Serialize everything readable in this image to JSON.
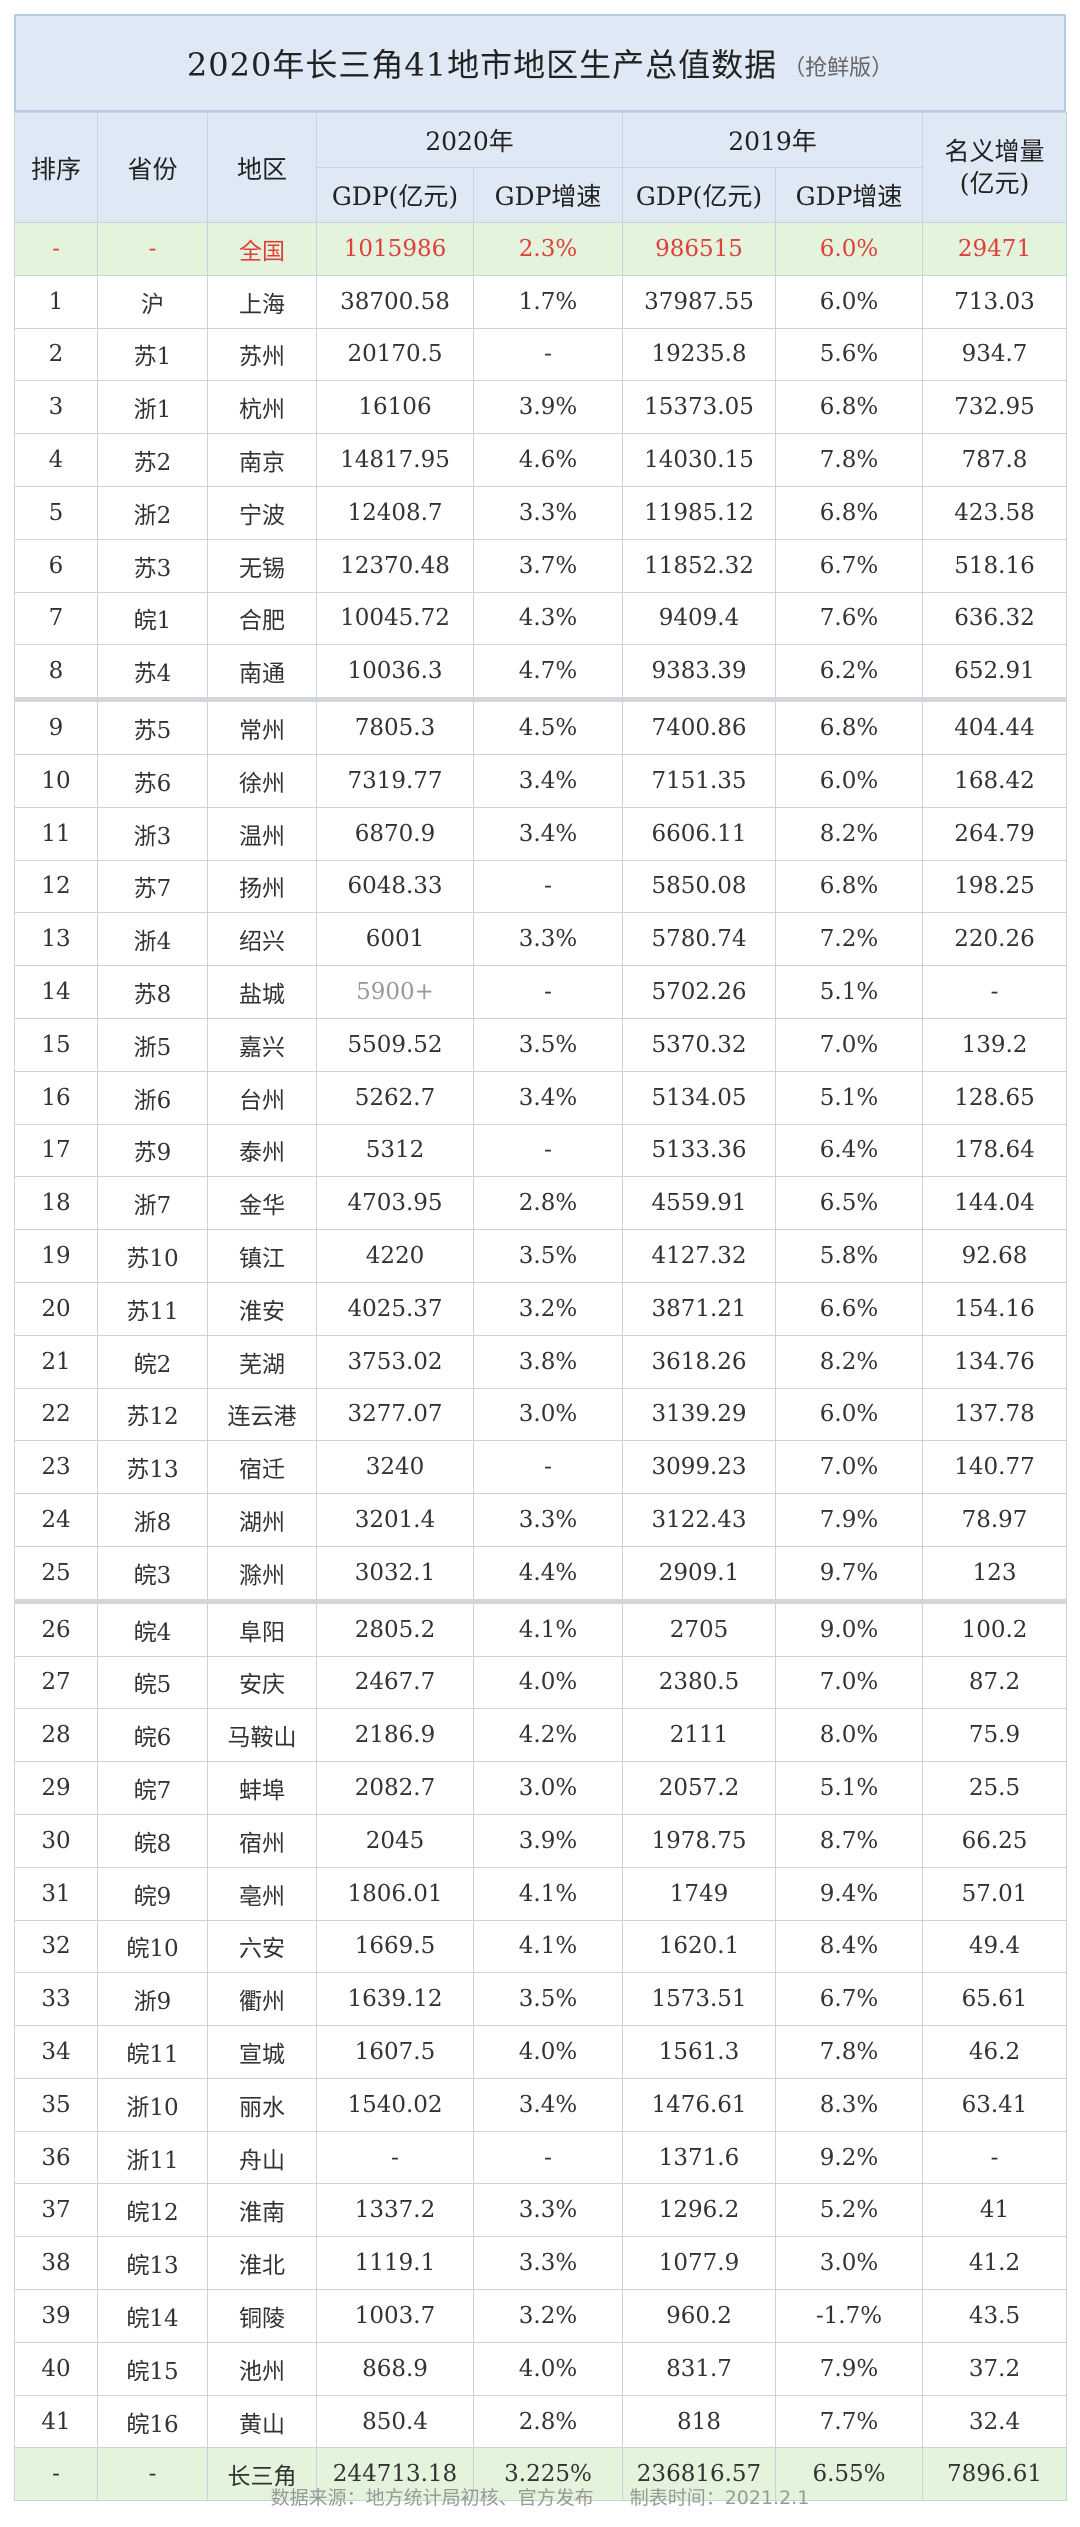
{
  "title": {
    "main": "2020年长三角41地市地区生产总值数据",
    "sub": "（抢鲜版）"
  },
  "headers": {
    "rank": "排序",
    "province": "省份",
    "region": "地区",
    "year2020": "2020年",
    "year2019": "2019年",
    "gdp": "GDP(亿元)",
    "growth": "GDP增速",
    "increase_line1": "名义增量",
    "increase_line2": "(亿元)"
  },
  "national": {
    "rank": "-",
    "prov": "-",
    "city": "全国",
    "gdp20": "1015986",
    "g20": "2.3%",
    "gdp19": "986515",
    "g19": "6.0%",
    "inc": "29471"
  },
  "rows": [
    {
      "rank": "1",
      "prov": "沪",
      "city": "上海",
      "gdp20": "38700.58",
      "g20": "1.7%",
      "gdp19": "37987.55",
      "g19": "6.0%",
      "inc": "713.03"
    },
    {
      "rank": "2",
      "prov": "苏1",
      "city": "苏州",
      "gdp20": "20170.5",
      "g20": "-",
      "gdp19": "19235.8",
      "g19": "5.6%",
      "inc": "934.7"
    },
    {
      "rank": "3",
      "prov": "浙1",
      "city": "杭州",
      "gdp20": "16106",
      "g20": "3.9%",
      "gdp19": "15373.05",
      "g19": "6.8%",
      "inc": "732.95"
    },
    {
      "rank": "4",
      "prov": "苏2",
      "city": "南京",
      "gdp20": "14817.95",
      "g20": "4.6%",
      "gdp19": "14030.15",
      "g19": "7.8%",
      "inc": "787.8"
    },
    {
      "rank": "5",
      "prov": "浙2",
      "city": "宁波",
      "gdp20": "12408.7",
      "g20": "3.3%",
      "gdp19": "11985.12",
      "g19": "6.8%",
      "inc": "423.58"
    },
    {
      "rank": "6",
      "prov": "苏3",
      "city": "无锡",
      "gdp20": "12370.48",
      "g20": "3.7%",
      "gdp19": "11852.32",
      "g19": "6.7%",
      "inc": "518.16"
    },
    {
      "rank": "7",
      "prov": "皖1",
      "city": "合肥",
      "gdp20": "10045.72",
      "g20": "4.3%",
      "gdp19": "9409.4",
      "g19": "7.6%",
      "inc": "636.32"
    },
    {
      "rank": "8",
      "prov": "苏4",
      "city": "南通",
      "gdp20": "10036.3",
      "g20": "4.7%",
      "gdp19": "9383.39",
      "g19": "6.2%",
      "inc": "652.91"
    },
    {
      "rank": "9",
      "prov": "苏5",
      "city": "常州",
      "gdp20": "7805.3",
      "g20": "4.5%",
      "gdp19": "7400.86",
      "g19": "6.8%",
      "inc": "404.44"
    },
    {
      "rank": "10",
      "prov": "苏6",
      "city": "徐州",
      "gdp20": "7319.77",
      "g20": "3.4%",
      "gdp19": "7151.35",
      "g19": "6.0%",
      "inc": "168.42"
    },
    {
      "rank": "11",
      "prov": "浙3",
      "city": "温州",
      "gdp20": "6870.9",
      "g20": "3.4%",
      "gdp19": "6606.11",
      "g19": "8.2%",
      "inc": "264.79"
    },
    {
      "rank": "12",
      "prov": "苏7",
      "city": "扬州",
      "gdp20": "6048.33",
      "g20": "-",
      "gdp19": "5850.08",
      "g19": "6.8%",
      "inc": "198.25"
    },
    {
      "rank": "13",
      "prov": "浙4",
      "city": "绍兴",
      "gdp20": "6001",
      "g20": "3.3%",
      "gdp19": "5780.74",
      "g19": "7.2%",
      "inc": "220.26"
    },
    {
      "rank": "14",
      "prov": "苏8",
      "city": "盐城",
      "gdp20": "5900+",
      "g20": "-",
      "gdp19": "5702.26",
      "g19": "5.1%",
      "inc": "-"
    },
    {
      "rank": "15",
      "prov": "浙5",
      "city": "嘉兴",
      "gdp20": "5509.52",
      "g20": "3.5%",
      "gdp19": "5370.32",
      "g19": "7.0%",
      "inc": "139.2"
    },
    {
      "rank": "16",
      "prov": "浙6",
      "city": "台州",
      "gdp20": "5262.7",
      "g20": "3.4%",
      "gdp19": "5134.05",
      "g19": "5.1%",
      "inc": "128.65"
    },
    {
      "rank": "17",
      "prov": "苏9",
      "city": "泰州",
      "gdp20": "5312",
      "g20": "-",
      "gdp19": "5133.36",
      "g19": "6.4%",
      "inc": "178.64"
    },
    {
      "rank": "18",
      "prov": "浙7",
      "city": "金华",
      "gdp20": "4703.95",
      "g20": "2.8%",
      "gdp19": "4559.91",
      "g19": "6.5%",
      "inc": "144.04"
    },
    {
      "rank": "19",
      "prov": "苏10",
      "city": "镇江",
      "gdp20": "4220",
      "g20": "3.5%",
      "gdp19": "4127.32",
      "g19": "5.8%",
      "inc": "92.68"
    },
    {
      "rank": "20",
      "prov": "苏11",
      "city": "淮安",
      "gdp20": "4025.37",
      "g20": "3.2%",
      "gdp19": "3871.21",
      "g19": "6.6%",
      "inc": "154.16"
    },
    {
      "rank": "21",
      "prov": "皖2",
      "city": "芜湖",
      "gdp20": "3753.02",
      "g20": "3.8%",
      "gdp19": "3618.26",
      "g19": "8.2%",
      "inc": "134.76"
    },
    {
      "rank": "22",
      "prov": "苏12",
      "city": "连云港",
      "gdp20": "3277.07",
      "g20": "3.0%",
      "gdp19": "3139.29",
      "g19": "6.0%",
      "inc": "137.78"
    },
    {
      "rank": "23",
      "prov": "苏13",
      "city": "宿迁",
      "gdp20": "3240",
      "g20": "-",
      "gdp19": "3099.23",
      "g19": "7.0%",
      "inc": "140.77"
    },
    {
      "rank": "24",
      "prov": "浙8",
      "city": "湖州",
      "gdp20": "3201.4",
      "g20": "3.3%",
      "gdp19": "3122.43",
      "g19": "7.9%",
      "inc": "78.97"
    },
    {
      "rank": "25",
      "prov": "皖3",
      "city": "滁州",
      "gdp20": "3032.1",
      "g20": "4.4%",
      "gdp19": "2909.1",
      "g19": "9.7%",
      "inc": "123"
    },
    {
      "rank": "26",
      "prov": "皖4",
      "city": "阜阳",
      "gdp20": "2805.2",
      "g20": "4.1%",
      "gdp19": "2705",
      "g19": "9.0%",
      "inc": "100.2"
    },
    {
      "rank": "27",
      "prov": "皖5",
      "city": "安庆",
      "gdp20": "2467.7",
      "g20": "4.0%",
      "gdp19": "2380.5",
      "g19": "7.0%",
      "inc": "87.2"
    },
    {
      "rank": "28",
      "prov": "皖6",
      "city": "马鞍山",
      "gdp20": "2186.9",
      "g20": "4.2%",
      "gdp19": "2111",
      "g19": "8.0%",
      "inc": "75.9"
    },
    {
      "rank": "29",
      "prov": "皖7",
      "city": "蚌埠",
      "gdp20": "2082.7",
      "g20": "3.0%",
      "gdp19": "2057.2",
      "g19": "5.1%",
      "inc": "25.5"
    },
    {
      "rank": "30",
      "prov": "皖8",
      "city": "宿州",
      "gdp20": "2045",
      "g20": "3.9%",
      "gdp19": "1978.75",
      "g19": "8.7%",
      "inc": "66.25"
    },
    {
      "rank": "31",
      "prov": "皖9",
      "city": "亳州",
      "gdp20": "1806.01",
      "g20": "4.1%",
      "gdp19": "1749",
      "g19": "9.4%",
      "inc": "57.01"
    },
    {
      "rank": "32",
      "prov": "皖10",
      "city": "六安",
      "gdp20": "1669.5",
      "g20": "4.1%",
      "gdp19": "1620.1",
      "g19": "8.4%",
      "inc": "49.4"
    },
    {
      "rank": "33",
      "prov": "浙9",
      "city": "衢州",
      "gdp20": "1639.12",
      "g20": "3.5%",
      "gdp19": "1573.51",
      "g19": "6.7%",
      "inc": "65.61"
    },
    {
      "rank": "34",
      "prov": "皖11",
      "city": "宣城",
      "gdp20": "1607.5",
      "g20": "4.0%",
      "gdp19": "1561.3",
      "g19": "7.8%",
      "inc": "46.2"
    },
    {
      "rank": "35",
      "prov": "浙10",
      "city": "丽水",
      "gdp20": "1540.02",
      "g20": "3.4%",
      "gdp19": "1476.61",
      "g19": "8.3%",
      "inc": "63.41"
    },
    {
      "rank": "36",
      "prov": "浙11",
      "city": "舟山",
      "gdp20": "-",
      "g20": "-",
      "gdp19": "1371.6",
      "g19": "9.2%",
      "inc": "-"
    },
    {
      "rank": "37",
      "prov": "皖12",
      "city": "淮南",
      "gdp20": "1337.2",
      "g20": "3.3%",
      "gdp19": "1296.2",
      "g19": "5.2%",
      "inc": "41"
    },
    {
      "rank": "38",
      "prov": "皖13",
      "city": "淮北",
      "gdp20": "1119.1",
      "g20": "3.3%",
      "gdp19": "1077.9",
      "g19": "3.0%",
      "inc": "41.2"
    },
    {
      "rank": "39",
      "prov": "皖14",
      "city": "铜陵",
      "gdp20": "1003.7",
      "g20": "3.2%",
      "gdp19": "960.2",
      "g19": "-1.7%",
      "inc": "43.5"
    },
    {
      "rank": "40",
      "prov": "皖15",
      "city": "池州",
      "gdp20": "868.9",
      "g20": "4.0%",
      "gdp19": "831.7",
      "g19": "7.9%",
      "inc": "37.2"
    },
    {
      "rank": "41",
      "prov": "皖16",
      "city": "黄山",
      "gdp20": "850.4",
      "g20": "2.8%",
      "gdp19": "818",
      "g19": "7.7%",
      "inc": "32.4"
    }
  ],
  "total": {
    "rank": "-",
    "prov": "-",
    "city": "长三角",
    "gdp20": "244713.18",
    "g20": "3.225%",
    "gdp19": "236816.57",
    "g19": "6.55%",
    "inc": "7896.61"
  },
  "footer": {
    "source": "数据来源：地方统计局初核、官方发布",
    "time": "制表时间：2021.2.1"
  },
  "colors": {
    "hu": "#7a4fb0",
    "su": "#4d8dcc",
    "zhe": "#5caa2e",
    "wan": "#e0822c",
    "national_text": "#e0403a",
    "header_bg": "#dfe9f5",
    "highlight_bg": "#e3f3dc"
  }
}
